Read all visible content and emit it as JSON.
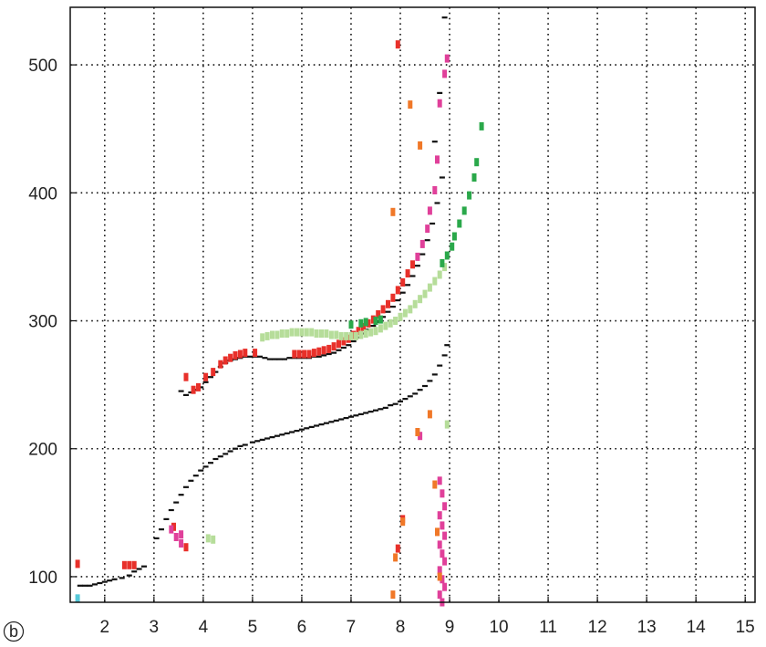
{
  "chart_data": {
    "type": "scatter",
    "panel_label": "b",
    "title": "",
    "xlabel": "",
    "ylabel": "",
    "xlim": [
      1.3,
      15.2
    ],
    "ylim": [
      80,
      545
    ],
    "x_ticks": [
      2,
      3,
      4,
      5,
      6,
      7,
      8,
      9,
      10,
      11,
      12,
      13,
      14,
      15
    ],
    "y_ticks": [
      100,
      200,
      300,
      400,
      500
    ],
    "grid": true,
    "grid_style": "dotted",
    "colors": {
      "black": "#111111",
      "red": "#e8302a",
      "light_green": "#b6dd9a",
      "dark_green": "#2aa84a",
      "magenta": "#e0409a",
      "orange": "#f07828",
      "cyan": "#55c8d8",
      "axis": "#111111",
      "grid": "#111111"
    },
    "series": [
      {
        "color": "black",
        "marker": "dash",
        "points": [
          [
            1.5,
            93
          ],
          [
            1.6,
            93
          ],
          [
            1.7,
            93
          ],
          [
            1.8,
            94
          ],
          [
            1.9,
            95
          ],
          [
            2.0,
            96
          ],
          [
            2.1,
            97
          ],
          [
            2.2,
            98
          ],
          [
            2.35,
            99
          ],
          [
            2.5,
            101
          ],
          [
            2.6,
            104
          ],
          [
            2.7,
            106
          ],
          [
            2.8,
            108
          ],
          [
            3.05,
            130
          ],
          [
            3.15,
            137
          ],
          [
            3.25,
            145
          ],
          [
            3.35,
            152
          ],
          [
            3.45,
            158
          ],
          [
            3.55,
            164
          ],
          [
            3.65,
            170
          ],
          [
            3.75,
            175
          ],
          [
            3.85,
            179
          ],
          [
            3.95,
            183
          ],
          [
            4.05,
            186
          ],
          [
            4.15,
            189
          ],
          [
            4.25,
            192
          ],
          [
            4.35,
            194
          ],
          [
            4.45,
            196
          ],
          [
            4.55,
            198
          ],
          [
            4.65,
            200
          ],
          [
            4.75,
            202
          ],
          [
            4.85,
            203
          ],
          [
            5.0,
            205
          ],
          [
            5.1,
            206
          ],
          [
            5.2,
            207
          ],
          [
            5.3,
            208
          ],
          [
            5.4,
            209
          ],
          [
            5.5,
            210
          ],
          [
            5.6,
            211
          ],
          [
            5.7,
            212
          ],
          [
            5.8,
            213
          ],
          [
            5.9,
            214
          ],
          [
            6.0,
            215
          ],
          [
            6.1,
            216
          ],
          [
            6.2,
            217
          ],
          [
            6.3,
            218
          ],
          [
            6.4,
            219
          ],
          [
            6.5,
            220
          ],
          [
            6.6,
            221
          ],
          [
            6.7,
            222
          ],
          [
            6.8,
            223
          ],
          [
            6.9,
            224
          ],
          [
            7.0,
            225
          ],
          [
            7.1,
            226
          ],
          [
            7.2,
            227
          ],
          [
            7.3,
            228
          ],
          [
            7.4,
            229
          ],
          [
            7.5,
            230
          ],
          [
            7.6,
            231
          ],
          [
            7.7,
            232
          ],
          [
            7.8,
            234
          ],
          [
            7.9,
            235
          ],
          [
            8.0,
            237
          ],
          [
            8.1,
            239
          ],
          [
            8.2,
            241
          ],
          [
            8.3,
            243
          ],
          [
            8.4,
            246
          ],
          [
            8.5,
            249
          ],
          [
            8.6,
            253
          ],
          [
            8.7,
            258
          ],
          [
            8.8,
            265
          ],
          [
            8.9,
            273
          ],
          [
            8.95,
            281
          ],
          [
            3.55,
            245
          ],
          [
            3.65,
            242
          ],
          [
            3.75,
            244
          ],
          [
            3.85,
            246
          ],
          [
            3.95,
            248
          ],
          [
            4.05,
            252
          ],
          [
            4.15,
            256
          ],
          [
            4.25,
            260
          ],
          [
            4.35,
            264
          ],
          [
            4.45,
            267
          ],
          [
            4.55,
            269
          ],
          [
            4.65,
            270
          ],
          [
            4.75,
            271
          ],
          [
            4.85,
            272
          ],
          [
            4.95,
            272
          ],
          [
            5.05,
            272
          ],
          [
            5.15,
            272
          ],
          [
            5.25,
            271
          ],
          [
            5.35,
            270
          ],
          [
            5.45,
            270
          ],
          [
            5.55,
            270
          ],
          [
            5.65,
            270
          ],
          [
            5.75,
            271
          ],
          [
            5.85,
            271
          ],
          [
            5.95,
            271
          ],
          [
            6.05,
            271
          ],
          [
            6.15,
            271
          ],
          [
            6.25,
            272
          ],
          [
            6.35,
            272
          ],
          [
            6.45,
            273
          ],
          [
            6.55,
            274
          ],
          [
            6.65,
            275
          ],
          [
            6.75,
            277
          ],
          [
            6.85,
            279
          ],
          [
            6.95,
            281
          ],
          [
            7.05,
            284
          ],
          [
            7.15,
            287
          ],
          [
            7.25,
            290
          ],
          [
            7.35,
            293
          ],
          [
            7.45,
            296
          ],
          [
            7.55,
            299
          ],
          [
            7.65,
            303
          ],
          [
            7.75,
            307
          ],
          [
            7.85,
            311
          ],
          [
            7.95,
            316
          ],
          [
            8.05,
            322
          ],
          [
            8.15,
            328
          ],
          [
            8.25,
            335
          ],
          [
            8.35,
            343
          ],
          [
            8.45,
            352
          ],
          [
            8.55,
            363
          ],
          [
            8.65,
            376
          ],
          [
            8.75,
            392
          ],
          [
            8.85,
            412
          ],
          [
            8.7,
            440
          ],
          [
            8.8,
            478
          ],
          [
            8.9,
            537
          ]
        ]
      },
      {
        "color": "red",
        "marker": "bar",
        "points": [
          [
            1.45,
            110
          ],
          [
            2.4,
            109
          ],
          [
            2.5,
            109
          ],
          [
            2.6,
            109
          ],
          [
            3.4,
            139
          ],
          [
            3.65,
            123
          ],
          [
            3.65,
            256
          ],
          [
            3.8,
            246
          ],
          [
            3.9,
            248
          ],
          [
            4.05,
            256
          ],
          [
            4.2,
            260
          ],
          [
            4.35,
            266
          ],
          [
            4.45,
            269
          ],
          [
            4.55,
            271
          ],
          [
            4.65,
            273
          ],
          [
            4.75,
            274
          ],
          [
            4.85,
            275
          ],
          [
            5.05,
            275
          ],
          [
            5.85,
            274
          ],
          [
            5.95,
            274
          ],
          [
            6.05,
            274
          ],
          [
            6.15,
            274
          ],
          [
            6.25,
            275
          ],
          [
            6.35,
            276
          ],
          [
            6.45,
            277
          ],
          [
            6.55,
            278
          ],
          [
            6.65,
            280
          ],
          [
            6.75,
            282
          ],
          [
            6.85,
            284
          ],
          [
            6.95,
            286
          ],
          [
            7.05,
            289
          ],
          [
            7.15,
            292
          ],
          [
            7.25,
            295
          ],
          [
            7.35,
            298
          ],
          [
            7.45,
            301
          ],
          [
            7.55,
            305
          ],
          [
            7.65,
            309
          ],
          [
            7.75,
            313
          ],
          [
            7.85,
            318
          ],
          [
            7.95,
            324
          ],
          [
            8.05,
            330
          ],
          [
            8.15,
            337
          ],
          [
            8.25,
            344
          ],
          [
            7.95,
            516
          ],
          [
            7.95,
            122
          ],
          [
            8.05,
            145
          ]
        ]
      },
      {
        "color": "light_green",
        "marker": "bar",
        "points": [
          [
            4.1,
            130
          ],
          [
            4.2,
            129
          ],
          [
            5.2,
            287
          ],
          [
            5.3,
            288
          ],
          [
            5.4,
            289
          ],
          [
            5.5,
            289
          ],
          [
            5.6,
            290
          ],
          [
            5.7,
            290
          ],
          [
            5.8,
            291
          ],
          [
            5.9,
            291
          ],
          [
            6.0,
            291
          ],
          [
            6.1,
            291
          ],
          [
            6.2,
            291
          ],
          [
            6.3,
            290
          ],
          [
            6.4,
            290
          ],
          [
            6.5,
            290
          ],
          [
            6.6,
            289
          ],
          [
            6.7,
            289
          ],
          [
            6.8,
            288
          ],
          [
            6.9,
            288
          ],
          [
            7.0,
            288
          ],
          [
            7.1,
            288
          ],
          [
            7.2,
            289
          ],
          [
            7.3,
            290
          ],
          [
            7.4,
            291
          ],
          [
            7.5,
            292
          ],
          [
            7.6,
            294
          ],
          [
            7.7,
            296
          ],
          [
            7.8,
            298
          ],
          [
            7.9,
            300
          ],
          [
            8.0,
            303
          ],
          [
            8.1,
            306
          ],
          [
            8.2,
            309
          ],
          [
            8.3,
            313
          ],
          [
            8.4,
            317
          ],
          [
            8.5,
            321
          ],
          [
            8.6,
            326
          ],
          [
            8.7,
            331
          ],
          [
            8.8,
            336
          ],
          [
            8.9,
            342
          ],
          [
            8.95,
            219
          ]
        ]
      },
      {
        "color": "dark_green",
        "marker": "bar",
        "points": [
          [
            8.85,
            345
          ],
          [
            8.95,
            351
          ],
          [
            9.05,
            358
          ],
          [
            9.1,
            366
          ],
          [
            9.2,
            376
          ],
          [
            9.3,
            386
          ],
          [
            9.4,
            398
          ],
          [
            9.5,
            412
          ],
          [
            9.55,
            424
          ],
          [
            9.65,
            452
          ],
          [
            7.0,
            297
          ],
          [
            7.2,
            298
          ],
          [
            7.3,
            299
          ],
          [
            7.5,
            300
          ],
          [
            7.6,
            301
          ]
        ]
      },
      {
        "color": "magenta",
        "marker": "bar",
        "points": [
          [
            3.35,
            137
          ],
          [
            3.45,
            131
          ],
          [
            3.55,
            126
          ],
          [
            3.55,
            133
          ],
          [
            8.35,
            350
          ],
          [
            8.45,
            360
          ],
          [
            8.55,
            372
          ],
          [
            8.6,
            386
          ],
          [
            8.7,
            402
          ],
          [
            8.75,
            426
          ],
          [
            8.8,
            470
          ],
          [
            8.9,
            493
          ],
          [
            8.95,
            505
          ],
          [
            8.4,
            210
          ],
          [
            8.8,
            175
          ],
          [
            8.85,
            165
          ],
          [
            8.9,
            155
          ],
          [
            8.8,
            148
          ],
          [
            8.85,
            140
          ],
          [
            8.9,
            132
          ],
          [
            8.8,
            125
          ],
          [
            8.85,
            118
          ],
          [
            8.9,
            112
          ],
          [
            8.8,
            105
          ],
          [
            8.85,
            98
          ],
          [
            8.9,
            92
          ],
          [
            8.8,
            86
          ],
          [
            8.85,
            80
          ]
        ]
      },
      {
        "color": "orange",
        "marker": "bar",
        "points": [
          [
            7.85,
            385
          ],
          [
            8.2,
            469
          ],
          [
            8.4,
            437
          ],
          [
            8.35,
            213
          ],
          [
            8.6,
            227
          ],
          [
            7.85,
            86
          ],
          [
            7.9,
            115
          ],
          [
            8.05,
            143
          ],
          [
            8.7,
            172
          ],
          [
            8.75,
            135
          ],
          [
            8.8,
            100
          ]
        ]
      },
      {
        "color": "cyan",
        "marker": "bar",
        "points": [
          [
            1.45,
            83
          ]
        ]
      }
    ]
  }
}
